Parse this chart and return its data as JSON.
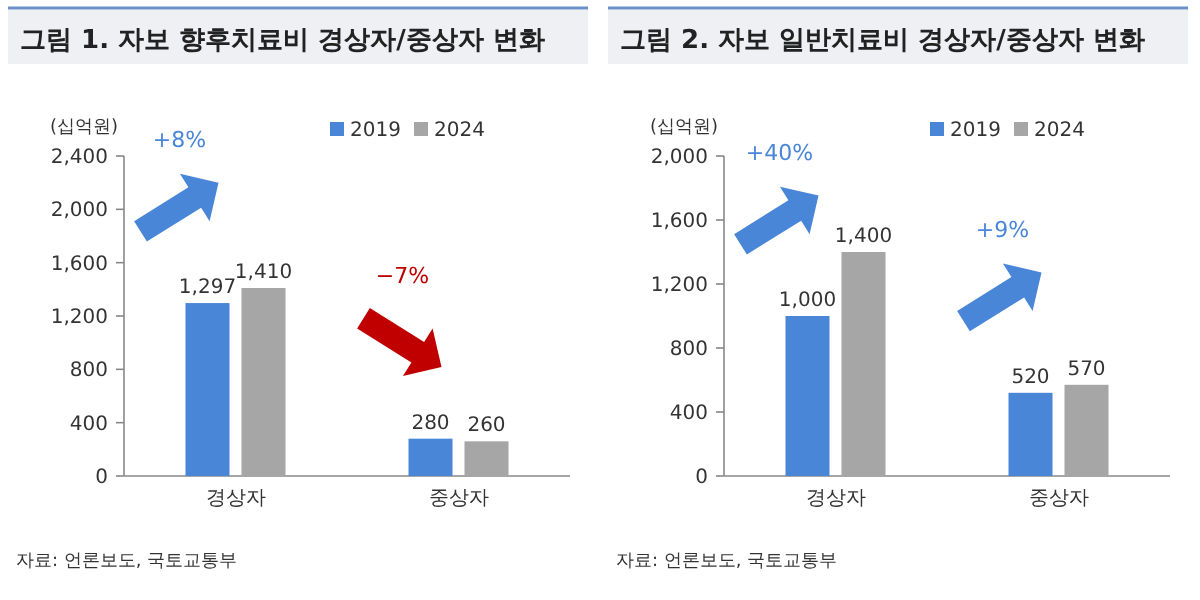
{
  "chart_data": [
    {
      "type": "bar",
      "title": "그림 1.  자보 향후치료비 경상자/중상자 변화",
      "ylabel": "(십억원)",
      "categories": [
        "경상자",
        "중상자"
      ],
      "series": [
        {
          "name": "2019",
          "color": "#4a86d8",
          "values": [
            1297,
            280
          ],
          "value_labels": [
            "1,297",
            "280"
          ]
        },
        {
          "name": "2024",
          "color": "#a6a6a6",
          "values": [
            1410,
            260
          ],
          "value_labels": [
            "1,410",
            "260"
          ]
        }
      ],
      "ylim": [
        0,
        2400
      ],
      "yticks": [
        {
          "value": 0,
          "label": "0"
        },
        {
          "value": 400,
          "label": "400"
        },
        {
          "value": 800,
          "label": "800"
        },
        {
          "value": 1200,
          "label": "1,200"
        },
        {
          "value": 1600,
          "label": "1,600"
        },
        {
          "value": 2000,
          "label": "2,000"
        },
        {
          "value": 2400,
          "label": "2,400"
        }
      ],
      "legend": "top",
      "annotations": [
        "+8%",
        "−7%",
        "자료: 언론보도, 국토교통부"
      ]
    },
    {
      "type": "bar",
      "title": "그림 2.  자보 일반치료비 경상자/중상자 변화",
      "ylabel": "(십억원)",
      "categories": [
        "경상자",
        "중상자"
      ],
      "series": [
        {
          "name": "2019",
          "color": "#4a86d8",
          "values": [
            1000,
            520
          ],
          "value_labels": [
            "1,000",
            "520"
          ]
        },
        {
          "name": "2024",
          "color": "#a6a6a6",
          "values": [
            1400,
            570
          ],
          "value_labels": [
            "1,400",
            "570"
          ]
        }
      ],
      "ylim": [
        0,
        2000
      ],
      "yticks": [
        {
          "value": 0,
          "label": "0"
        },
        {
          "value": 400,
          "label": "400"
        },
        {
          "value": 800,
          "label": "800"
        },
        {
          "value": 1200,
          "label": "1,200"
        },
        {
          "value": 1600,
          "label": "1,600"
        },
        {
          "value": 2000,
          "label": "2,000"
        }
      ],
      "legend": "top",
      "annotations": [
        "+40%",
        "+9%",
        "자료: 언론보도, 국토교통부"
      ]
    }
  ]
}
